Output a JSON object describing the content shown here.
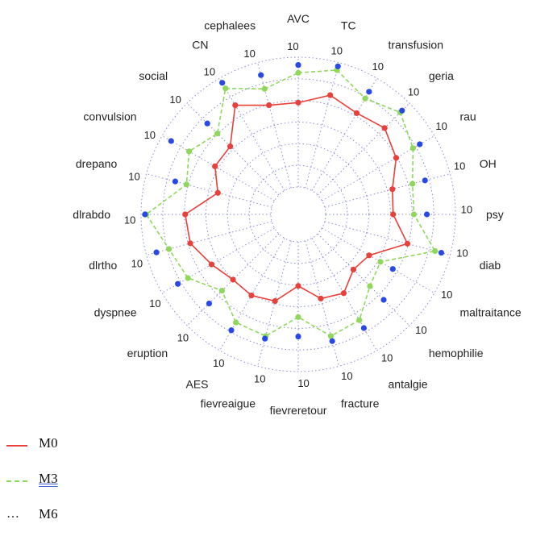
{
  "chart_data": {
    "type": "radar",
    "axes": [
      "AVC",
      "TC",
      "transfusion",
      "geria",
      "rau",
      "OH",
      "psy",
      "diab",
      "maltraitance",
      "hemophilie",
      "antalgie",
      "fracture",
      "fievreretour",
      "fievreaigue",
      "AES",
      "eruption",
      "dyspnee",
      "dlrtho",
      "dlrabdo",
      "drepano",
      "convulsion",
      "social",
      "CN",
      "cephalees"
    ],
    "tick_label": "10",
    "rmax": 10,
    "legend_position": "bottom-left",
    "series": [
      {
        "name": "M0",
        "color": "#e8403a",
        "style": "solid",
        "values": [
          6.5,
          7.4,
          6.9,
          7.3,
          6.6,
          5.4,
          5.2,
          6.6,
          4.2,
          3.9,
          4.9,
          4.6,
          3.4,
          4.8,
          5.1,
          5.0,
          5.6,
          6.5,
          6.6,
          4.3,
          5.3,
          5.3,
          7.6,
          6.6
        ]
      },
      {
        "name": "M3",
        "color": "#8fd85c",
        "style": "dashed",
        "values": [
          8.8,
          9.4,
          8.2,
          9.0,
          8.1,
          7.0,
          6.8,
          8.8,
          5.2,
          5.7,
          7.3,
          7.6,
          5.8,
          7.6,
          7.5,
          6.2,
          7.7,
          8.2,
          9.6,
          6.8,
          7.6,
          6.7,
          9.1,
          7.9
        ]
      },
      {
        "name": "M6",
        "color": "#2849e6",
        "style": "dotted",
        "values": [
          9.4,
          9.7,
          8.8,
          9.2,
          8.7,
          8.0,
          7.8,
          9.3,
          6.3,
          7.2,
          8.0,
          8.0,
          7.3,
          7.8,
          8.2,
          7.6,
          8.6,
          9.2,
          9.7,
          7.7,
          9.2,
          7.8,
          9.6,
          9.0
        ]
      }
    ]
  }
}
